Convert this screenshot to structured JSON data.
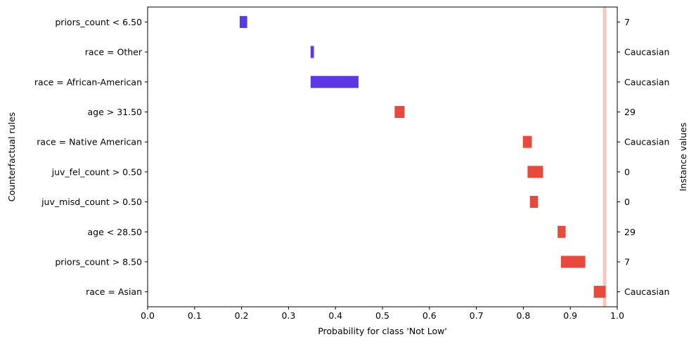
{
  "chart_data": {
    "type": "bar",
    "subtype": "horizontal-interval",
    "xlabel": "Probability for class 'Not Low'",
    "ylabel": "Counterfactual rules",
    "y2label": "Instance values",
    "xlim": [
      0.0,
      1.0
    ],
    "xticks": [
      "0.0",
      "0.1",
      "0.2",
      "0.3",
      "0.4",
      "0.5",
      "0.6",
      "0.7",
      "0.8",
      "0.9",
      "1.0"
    ],
    "reference_line": 0.973,
    "rules": [
      {
        "rule": "priors_count < 6.50",
        "instance_value": "7",
        "low": 0.196,
        "high": 0.212,
        "color": "#5b37e5"
      },
      {
        "rule": "race = Other",
        "instance_value": "Caucasian",
        "low": 0.347,
        "high": 0.354,
        "color": "#5b37e5"
      },
      {
        "rule": "race = African-American",
        "instance_value": "Caucasian",
        "low": 0.347,
        "high": 0.449,
        "color": "#5b37e5"
      },
      {
        "rule": "age > 31.50",
        "instance_value": "29",
        "low": 0.526,
        "high": 0.547,
        "color": "#e74a3c"
      },
      {
        "rule": "race = Native American",
        "instance_value": "Caucasian",
        "low": 0.799,
        "high": 0.818,
        "color": "#e74a3c"
      },
      {
        "rule": "juv_fel_count > 0.50",
        "instance_value": "0",
        "low": 0.809,
        "high": 0.842,
        "color": "#e74a3c"
      },
      {
        "rule": "juv_misd_count > 0.50",
        "instance_value": "0",
        "low": 0.814,
        "high": 0.831,
        "color": "#e74a3c"
      },
      {
        "rule": "age < 28.50",
        "instance_value": "29",
        "low": 0.873,
        "high": 0.89,
        "color": "#e74a3c"
      },
      {
        "rule": "priors_count > 8.50",
        "instance_value": "7",
        "low": 0.88,
        "high": 0.932,
        "color": "#e74a3c"
      },
      {
        "rule": "race = Asian",
        "instance_value": "Caucasian",
        "low": 0.95,
        "high": 0.975,
        "color": "#e74a3c"
      }
    ],
    "colors": {
      "decrease": "#5b37e5",
      "increase": "#e74a3c",
      "reference_line": "#f6c7c0"
    }
  }
}
